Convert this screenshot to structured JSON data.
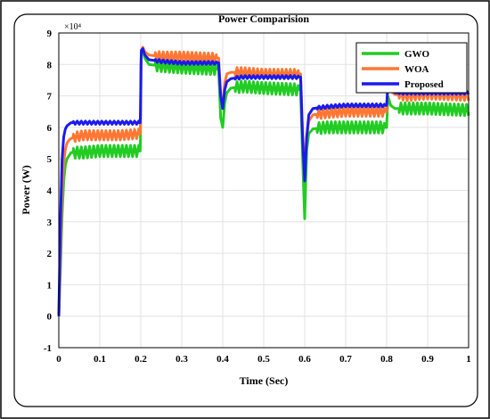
{
  "chart_data": {
    "type": "line",
    "title": "Power Comparision",
    "xlabel": "Time (Sec)",
    "ylabel": "Power (W)",
    "y_multiplier": "×10⁴",
    "xlim": [
      0,
      1
    ],
    "ylim": [
      -1,
      9
    ],
    "x_ticks": [
      "0",
      "0.1",
      "0.2",
      "0.3",
      "0.4",
      "0.5",
      "0.6",
      "0.7",
      "0.8",
      "0.9",
      "1"
    ],
    "y_ticks": [
      "-1",
      "0",
      "1",
      "2",
      "3",
      "4",
      "5",
      "6",
      "7",
      "8",
      "9"
    ],
    "grid": true,
    "legend_position": "top-right",
    "series": [
      {
        "name": "GWO",
        "color": "#22cc22",
        "ripple": 0.18,
        "x": [
          0,
          0.004,
          0.008,
          0.012,
          0.016,
          0.02,
          0.025,
          0.03,
          0.04,
          0.06,
          0.1,
          0.15,
          0.199,
          0.201,
          0.205,
          0.21,
          0.22,
          0.25,
          0.3,
          0.39,
          0.395,
          0.4,
          0.405,
          0.41,
          0.42,
          0.45,
          0.5,
          0.59,
          0.595,
          0.6,
          0.605,
          0.61,
          0.62,
          0.65,
          0.7,
          0.79,
          0.8,
          0.803,
          0.81,
          0.82,
          0.85,
          0.9,
          1.0
        ],
        "y": [
          0,
          1.5,
          3.2,
          4.3,
          4.8,
          5.0,
          5.1,
          5.2,
          5.2,
          5.2,
          5.25,
          5.25,
          5.25,
          8.3,
          8.45,
          8.2,
          8.0,
          7.95,
          7.9,
          7.85,
          6.3,
          6.0,
          6.8,
          7.1,
          7.25,
          7.3,
          7.25,
          7.2,
          5.0,
          3.1,
          5.3,
          5.8,
          5.95,
          6.0,
          6.0,
          6.0,
          6.0,
          7.0,
          6.7,
          6.6,
          6.6,
          6.6,
          6.55
        ]
      },
      {
        "name": "WOA",
        "color": "#ff7733",
        "ripple": 0.15,
        "x": [
          0,
          0.004,
          0.008,
          0.012,
          0.016,
          0.02,
          0.025,
          0.03,
          0.04,
          0.06,
          0.1,
          0.15,
          0.199,
          0.201,
          0.205,
          0.21,
          0.22,
          0.25,
          0.3,
          0.39,
          0.395,
          0.4,
          0.405,
          0.41,
          0.42,
          0.45,
          0.5,
          0.59,
          0.595,
          0.6,
          0.605,
          0.61,
          0.62,
          0.65,
          0.7,
          0.79,
          0.8,
          0.803,
          0.81,
          0.82,
          0.85,
          0.9,
          1.0
        ],
        "y": [
          0,
          2.0,
          4.0,
          4.9,
          5.3,
          5.5,
          5.6,
          5.65,
          5.7,
          5.75,
          5.75,
          5.75,
          5.8,
          8.4,
          8.55,
          8.4,
          8.3,
          8.25,
          8.25,
          8.2,
          7.0,
          6.8,
          7.4,
          7.7,
          7.75,
          7.75,
          7.7,
          7.7,
          5.8,
          4.7,
          5.7,
          6.2,
          6.4,
          6.45,
          6.5,
          6.5,
          6.5,
          7.3,
          7.15,
          7.05,
          7.0,
          7.05,
          7.0
        ]
      },
      {
        "name": "Proposed",
        "color": "#1a1aee",
        "ripple": 0.05,
        "x": [
          0,
          0.004,
          0.008,
          0.012,
          0.016,
          0.02,
          0.025,
          0.03,
          0.04,
          0.06,
          0.1,
          0.15,
          0.199,
          0.201,
          0.205,
          0.21,
          0.22,
          0.25,
          0.3,
          0.39,
          0.395,
          0.4,
          0.405,
          0.41,
          0.42,
          0.45,
          0.5,
          0.59,
          0.595,
          0.6,
          0.605,
          0.61,
          0.62,
          0.65,
          0.7,
          0.79,
          0.8,
          0.803,
          0.81,
          0.82,
          0.85,
          0.9,
          1.0
        ],
        "y": [
          0,
          3.0,
          5.0,
          5.7,
          5.95,
          6.05,
          6.1,
          6.15,
          6.15,
          6.15,
          6.15,
          6.15,
          6.15,
          8.45,
          8.5,
          8.3,
          8.15,
          8.1,
          8.05,
          8.05,
          7.0,
          6.6,
          7.2,
          7.45,
          7.55,
          7.6,
          7.6,
          7.6,
          5.6,
          4.3,
          5.7,
          6.4,
          6.6,
          6.65,
          6.7,
          6.7,
          6.7,
          7.4,
          7.2,
          7.1,
          7.1,
          7.1,
          7.1
        ]
      }
    ]
  }
}
